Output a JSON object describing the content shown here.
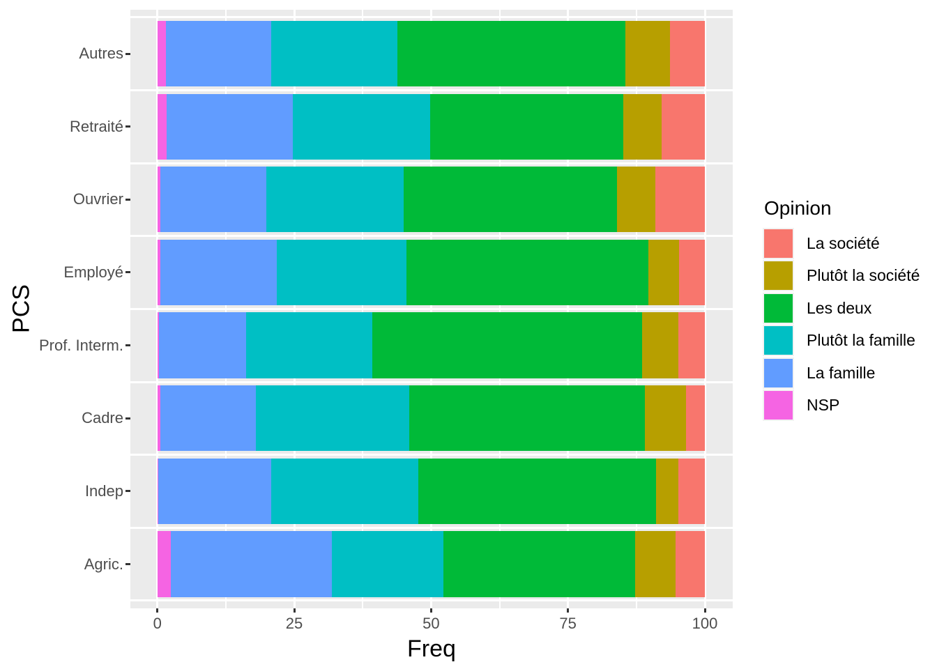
{
  "chart_data": {
    "type": "bar",
    "orientation": "horizontal",
    "stack": "percent",
    "title": "",
    "xlabel": "Freq",
    "ylabel": "PCS",
    "xlim": [
      0,
      100
    ],
    "x_ticks": [
      0,
      25,
      50,
      75,
      100
    ],
    "x_minor_ticks": [
      12.5,
      37.5,
      62.5,
      87.5
    ],
    "grid": true,
    "categories": [
      "Autres",
      "Retraité",
      "Ouvrier",
      "Employé",
      "Prof. Interm.",
      "Cadre",
      "Indep",
      "Agric."
    ],
    "series": [
      {
        "name": "NSP",
        "color": "#F564E3",
        "values": [
          1.6,
          1.7,
          0.5,
          0.6,
          0.3,
          0.6,
          0.2,
          2.5
        ]
      },
      {
        "name": "La famille",
        "color": "#619CFF",
        "values": [
          19.2,
          23.0,
          19.4,
          21.2,
          15.9,
          17.4,
          20.6,
          29.4
        ]
      },
      {
        "name": "Plutôt la famille",
        "color": "#00BFC4",
        "values": [
          23.0,
          25.1,
          25.1,
          23.7,
          23.1,
          28.0,
          26.9,
          20.4
        ]
      },
      {
        "name": "Les deux",
        "color": "#00BA38",
        "values": [
          41.7,
          35.3,
          38.9,
          44.2,
          49.2,
          43.0,
          43.4,
          35.0
        ]
      },
      {
        "name": "Plutôt la société",
        "color": "#B79F00",
        "values": [
          8.1,
          7.0,
          7.1,
          5.6,
          6.6,
          7.6,
          4.0,
          7.3
        ]
      },
      {
        "name": "La société",
        "color": "#F8766D",
        "values": [
          6.4,
          7.9,
          9.0,
          4.7,
          4.9,
          3.4,
          4.9,
          5.4
        ]
      }
    ],
    "legend": {
      "title": "Opinion",
      "position": "right",
      "entries": [
        {
          "label": "La société",
          "color": "#F8766D"
        },
        {
          "label": "Plutôt la société",
          "color": "#B79F00"
        },
        {
          "label": "Les deux",
          "color": "#00BA38"
        },
        {
          "label": "Plutôt la famille",
          "color": "#00BFC4"
        },
        {
          "label": "La famille",
          "color": "#619CFF"
        },
        {
          "label": "NSP",
          "color": "#F564E3"
        }
      ]
    },
    "colors": {
      "panel_background": "#EBEBEB",
      "gridline": "#FFFFFF",
      "tick_mark": "#333333",
      "tick_label": "#4D4D4D",
      "axis_title": "#000000"
    }
  }
}
